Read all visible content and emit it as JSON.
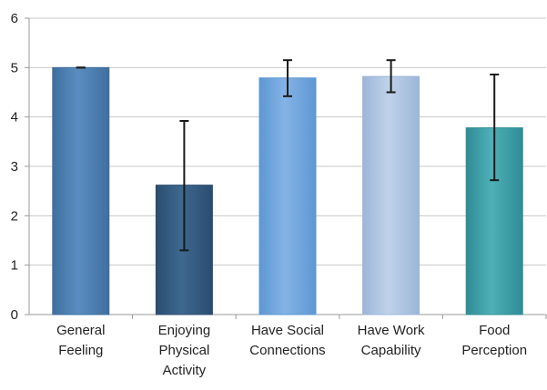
{
  "chart_data": {
    "type": "bar",
    "title": "",
    "xlabel": "",
    "ylabel": "",
    "ylim": [
      0,
      6
    ],
    "yticks": [
      0,
      1,
      2,
      3,
      4,
      5,
      6
    ],
    "grid": true,
    "legend": "none",
    "categories": [
      [
        "General",
        "Feeling"
      ],
      [
        "Enjoying",
        "Physical",
        "Activity"
      ],
      [
        "Have Social",
        "Connections"
      ],
      [
        "Have Work",
        "Capability"
      ],
      [
        "Food",
        "Perception"
      ]
    ],
    "values": [
      5.0,
      2.62,
      4.79,
      4.82,
      3.78
    ],
    "error_bars": [
      {
        "low": 5.0,
        "high": 5.0
      },
      {
        "low": 1.3,
        "high": 3.92
      },
      {
        "low": 4.42,
        "high": 5.15
      },
      {
        "low": 4.5,
        "high": 5.15
      },
      {
        "low": 2.72,
        "high": 4.86
      }
    ],
    "bar_colors": [
      "#3f6f9f",
      "#2b4d70",
      "#5e97d2",
      "#9cb6d8",
      "#2e8c95"
    ],
    "bar_highlight_colors": [
      "#5a8dc0",
      "#3e6890",
      "#84b3e6",
      "#c0d2ea",
      "#4fb0b8"
    ],
    "axis_color": "#9a9a9a",
    "grid_color": "#c9c9c9",
    "errorbar_color": "#1a1a1a"
  }
}
